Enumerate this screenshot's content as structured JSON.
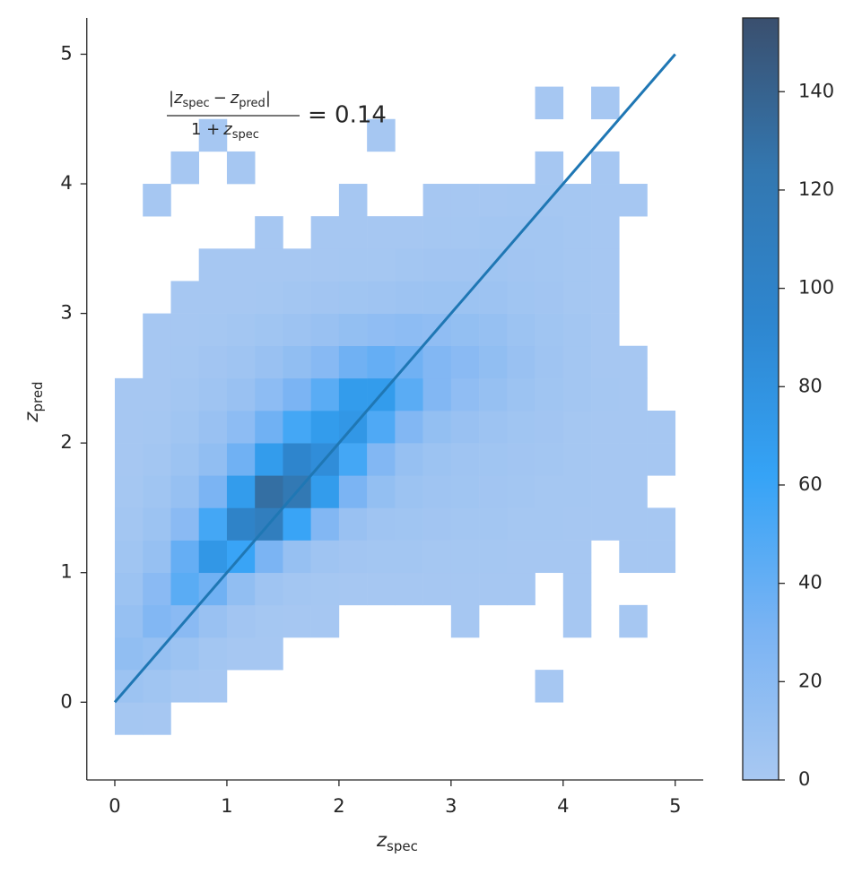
{
  "chart_data": {
    "type": "hist2d",
    "xlim": [
      -0.25,
      5.25
    ],
    "ylim": [
      -0.6,
      5.28
    ],
    "xticks": [
      0,
      1,
      2,
      3,
      4,
      5
    ],
    "yticks": [
      0,
      1,
      2,
      3,
      4,
      5
    ],
    "x_label": {
      "var": "z",
      "sub": "spec"
    },
    "y_label": {
      "var": "z",
      "sub": "pred"
    },
    "annotation": {
      "bar": "|",
      "minus": "−",
      "one_plus": "1 +",
      "equals": "= 0.14"
    },
    "x_bins": [
      0,
      0.25,
      0.5,
      0.75,
      1,
      1.25,
      1.5,
      1.75,
      2,
      2.25,
      2.5,
      2.75,
      3,
      3.25,
      3.5,
      3.75,
      4,
      4.25,
      4.5,
      4.75,
      5
    ],
    "y_bins": [
      -0.25,
      0,
      0.25,
      0.5,
      0.75,
      1,
      1.25,
      1.5,
      1.75,
      2,
      2.25,
      2.5,
      2.75,
      3,
      3.25,
      3.5,
      3.75,
      4,
      4.25,
      4.5,
      4.75
    ],
    "counts": [
      [
        2,
        1,
        0,
        0,
        0,
        0,
        0,
        0,
        0,
        0,
        0,
        0,
        0,
        0,
        0,
        0,
        0,
        0,
        0,
        0
      ],
      [
        8,
        5,
        2,
        1,
        0,
        0,
        0,
        0,
        0,
        0,
        0,
        0,
        0,
        0,
        0,
        1,
        0,
        0,
        0,
        0
      ],
      [
        15,
        12,
        8,
        3,
        1,
        1,
        0,
        0,
        0,
        0,
        0,
        0,
        0,
        0,
        0,
        0,
        0,
        0,
        0,
        0
      ],
      [
        12,
        25,
        20,
        10,
        4,
        2,
        1,
        1,
        0,
        0,
        0,
        0,
        1,
        0,
        0,
        0,
        1,
        0,
        1,
        0
      ],
      [
        8,
        20,
        45,
        35,
        15,
        6,
        3,
        2,
        1,
        1,
        1,
        1,
        1,
        1,
        1,
        0,
        1,
        0,
        0,
        0
      ],
      [
        5,
        12,
        40,
        75,
        60,
        30,
        12,
        6,
        4,
        3,
        3,
        2,
        2,
        2,
        1,
        1,
        1,
        0,
        1,
        1
      ],
      [
        3,
        8,
        20,
        55,
        100,
        110,
        60,
        25,
        10,
        6,
        5,
        4,
        3,
        3,
        2,
        2,
        1,
        1,
        1,
        1
      ],
      [
        2,
        5,
        12,
        30,
        70,
        130,
        120,
        70,
        30,
        14,
        8,
        6,
        5,
        4,
        3,
        2,
        2,
        1,
        1,
        0
      ],
      [
        1,
        3,
        8,
        15,
        35,
        70,
        95,
        85,
        55,
        25,
        12,
        8,
        6,
        5,
        4,
        3,
        2,
        1,
        1,
        1
      ],
      [
        1,
        2,
        5,
        10,
        18,
        35,
        55,
        70,
        75,
        50,
        25,
        14,
        10,
        7,
        5,
        4,
        2,
        1,
        1,
        1
      ],
      [
        1,
        1,
        3,
        6,
        10,
        18,
        30,
        45,
        70,
        70,
        45,
        25,
        16,
        12,
        8,
        5,
        3,
        2,
        1,
        0
      ],
      [
        0,
        1,
        2,
        4,
        6,
        10,
        15,
        22,
        35,
        40,
        35,
        25,
        20,
        15,
        10,
        6,
        3,
        1,
        1,
        0
      ],
      [
        0,
        1,
        1,
        2,
        3,
        5,
        7,
        10,
        14,
        16,
        18,
        16,
        14,
        12,
        8,
        5,
        3,
        1,
        0,
        0
      ],
      [
        0,
        0,
        1,
        1,
        1,
        2,
        3,
        4,
        5,
        6,
        7,
        8,
        8,
        7,
        5,
        4,
        2,
        1,
        0,
        0
      ],
      [
        0,
        0,
        0,
        1,
        1,
        1,
        1,
        1,
        2,
        2,
        3,
        4,
        4,
        5,
        4,
        3,
        2,
        1,
        0,
        0
      ],
      [
        0,
        0,
        0,
        0,
        0,
        1,
        0,
        1,
        1,
        1,
        1,
        2,
        2,
        3,
        3,
        3,
        2,
        1,
        0,
        0
      ],
      [
        0,
        1,
        0,
        0,
        0,
        0,
        0,
        0,
        1,
        0,
        0,
        1,
        1,
        1,
        2,
        2,
        2,
        1,
        1,
        0
      ],
      [
        0,
        0,
        1,
        0,
        1,
        0,
        0,
        0,
        0,
        0,
        0,
        0,
        0,
        0,
        0,
        1,
        0,
        1,
        0,
        0
      ],
      [
        0,
        0,
        0,
        1,
        0,
        0,
        0,
        0,
        0,
        1,
        0,
        0,
        0,
        0,
        0,
        0,
        0,
        0,
        0,
        0
      ],
      [
        0,
        0,
        0,
        0,
        0,
        0,
        0,
        0,
        0,
        0,
        0,
        0,
        0,
        0,
        0,
        1,
        0,
        1,
        0,
        0
      ]
    ],
    "cmap": [
      "#a8c8f2",
      "#79b3f3",
      "#35a3f6",
      "#2e86cf",
      "#3377b0",
      "#3a4f6e"
    ],
    "clim": [
      0,
      155
    ],
    "cticks": [
      0,
      20,
      40,
      60,
      80,
      100,
      120,
      140
    ],
    "line": {
      "color": "#1f77b4",
      "x": [
        0,
        5
      ],
      "values": [
        0,
        5
      ]
    }
  }
}
